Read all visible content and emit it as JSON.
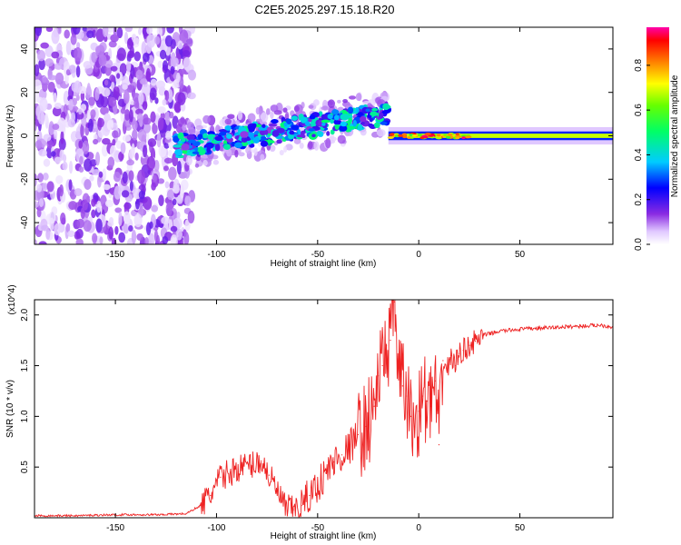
{
  "title": "C2E5.2025.297.15.18.R20",
  "chart_data": [
    {
      "type": "heatmap",
      "xlabel": "Height of straight line (km)",
      "ylabel": "Frequency (Hz)",
      "xlim": [
        -190,
        96
      ],
      "ylim": [
        -50,
        50
      ],
      "xticks": [
        -150,
        -100,
        -50,
        0,
        50
      ],
      "yticks": [
        -40,
        -20,
        0,
        20,
        40
      ],
      "colorbar": {
        "label": "Normalized spectral amplitude",
        "range": [
          0,
          0.97
        ],
        "ticks": [
          0.0,
          0.2,
          0.4,
          0.6,
          0.8
        ],
        "colors": [
          "#ffffff",
          "#8a2be2",
          "#0000ff",
          "#00ffff",
          "#00ff00",
          "#ffff00",
          "#ff8000",
          "#ff0000",
          "#ff00aa"
        ]
      },
      "regions": [
        {
          "name": "noise",
          "x": [
            -190,
            -112
          ],
          "freq_spread": 50,
          "level": 0.15
        },
        {
          "name": "transition",
          "x": [
            -120,
            -15
          ],
          "center_freq": [
            -5,
            10
          ],
          "level": 0.4
        },
        {
          "name": "stable",
          "x": [
            -15,
            96
          ],
          "center_freq": 0,
          "level": 0.85
        }
      ]
    },
    {
      "type": "line",
      "xlabel": "Height of straight line (km)",
      "ylabel": "SNR (10 * v/v)",
      "y_multiplier": "(x10^4)",
      "xlim": [
        -190,
        96
      ],
      "ylim": [
        0,
        2.15
      ],
      "xticks": [
        -150,
        -100,
        -50,
        0,
        50
      ],
      "yticks": [
        0.5,
        1.0,
        1.5,
        2.0
      ],
      "series": [
        {
          "name": "SNR",
          "color": "#ee2222",
          "x": [
            -190,
            -170,
            -150,
            -130,
            -115,
            -108,
            -103,
            -98,
            -93,
            -88,
            -83,
            -78,
            -74,
            -70,
            -66,
            -62,
            -58,
            -54,
            -50,
            -46,
            -42,
            -38,
            -34,
            -30,
            -26,
            -22,
            -20,
            -18,
            -16,
            -14,
            -12,
            -10,
            -8,
            -6,
            -4,
            -2,
            0,
            2,
            4,
            6,
            8,
            10,
            12,
            14,
            16,
            18,
            20,
            22,
            25,
            28,
            32,
            40,
            50,
            60,
            70,
            80,
            90,
            96
          ],
          "values": [
            0.02,
            0.02,
            0.03,
            0.03,
            0.04,
            0.12,
            0.22,
            0.4,
            0.45,
            0.5,
            0.52,
            0.56,
            0.42,
            0.26,
            0.1,
            0.08,
            0.12,
            0.22,
            0.32,
            0.44,
            0.55,
            0.62,
            0.7,
            0.82,
            0.9,
            1.1,
            1.4,
            1.5,
            1.7,
            1.75,
            2.13,
            1.5,
            1.3,
            1.2,
            1.0,
            0.9,
            1.05,
            1.2,
            1.15,
            1.1,
            1.35,
            0.72,
            1.55,
            1.45,
            1.6,
            1.5,
            1.62,
            1.65,
            1.7,
            1.74,
            1.8,
            1.84,
            1.86,
            1.87,
            1.88,
            1.89,
            1.9,
            1.88
          ]
        }
      ]
    }
  ]
}
